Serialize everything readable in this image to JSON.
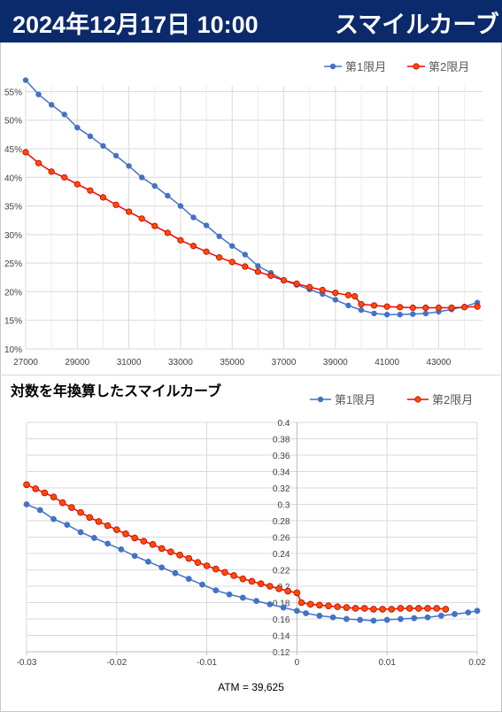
{
  "header": {
    "date": "2024年12月17日 10:00",
    "title": "スマイルカーブ"
  },
  "colors": {
    "header_bg": "#0b2a6b",
    "series1": "#4472c4",
    "series2": "#ff0000",
    "series2_fill": "#ff4b00"
  },
  "chart1_title": "",
  "chart2_title": "対数を年換算したスマイルカーブ",
  "atm_label": "ATM = 39,625",
  "chart_data": [
    {
      "type": "line",
      "legend": "top-right",
      "xlim": [
        27000,
        44700
      ],
      "ylim": [
        10,
        56
      ],
      "x_ticks": [
        "27000",
        "29000",
        "31000",
        "33000",
        "35000",
        "37000",
        "39000",
        "41000",
        "43000"
      ],
      "y_ticks": [
        "10%",
        "15%",
        "20%",
        "25%",
        "30%",
        "35%",
        "40%",
        "45%",
        "50%",
        "55%"
      ],
      "grid": true,
      "series": [
        {
          "name": "第1限月",
          "color": "#4472c4",
          "x": [
            27000,
            27500,
            28000,
            28500,
            29000,
            29500,
            30000,
            30500,
            31000,
            31500,
            32000,
            32500,
            33000,
            33500,
            34000,
            34500,
            35000,
            35500,
            36000,
            36500,
            37000,
            37500,
            38000,
            38500,
            39000,
            39500,
            40000,
            40500,
            41000,
            41500,
            42000,
            42500,
            43000,
            43500,
            44000,
            44500
          ],
          "y": [
            57.0,
            54.5,
            52.7,
            51.0,
            48.7,
            47.2,
            45.5,
            43.8,
            42.0,
            40.0,
            38.5,
            36.8,
            35.0,
            33.0,
            31.6,
            29.7,
            28.0,
            26.5,
            24.5,
            23.3,
            22.0,
            21.2,
            20.4,
            19.6,
            18.6,
            17.6,
            16.8,
            16.2,
            16.0,
            16.0,
            16.1,
            16.2,
            16.5,
            16.9,
            17.4,
            18.1
          ]
        },
        {
          "name": "第2限月",
          "color": "#ff0000",
          "x": [
            27000,
            27500,
            28000,
            28500,
            29000,
            29500,
            30000,
            30500,
            31000,
            31500,
            32000,
            32500,
            33000,
            33500,
            34000,
            34500,
            35000,
            35500,
            36000,
            36500,
            37000,
            37500,
            38000,
            38500,
            39000,
            39500,
            39750,
            40000,
            40500,
            41000,
            41500,
            42000,
            42500,
            43000,
            43500,
            44000,
            44500
          ],
          "y": [
            44.4,
            42.5,
            41.0,
            40.0,
            38.8,
            37.7,
            36.5,
            35.2,
            34.0,
            32.8,
            31.5,
            30.3,
            29.0,
            28.0,
            27.0,
            26.0,
            25.2,
            24.4,
            23.5,
            22.8,
            22.0,
            21.4,
            20.8,
            20.3,
            19.8,
            19.4,
            19.2,
            17.8,
            17.6,
            17.4,
            17.3,
            17.2,
            17.2,
            17.2,
            17.2,
            17.3,
            17.4
          ]
        }
      ]
    },
    {
      "type": "line",
      "title": "対数を年換算したスマイルカーブ",
      "legend": "top-right",
      "xlim": [
        -0.03,
        0.02
      ],
      "ylim": [
        0.12,
        0.4
      ],
      "x_ticks": [
        "-0.03",
        "-0.02",
        "-0.01",
        "0",
        "0.01",
        "0.02"
      ],
      "y_ticks": [
        "0.12",
        "0.14",
        "0.16",
        "0.18",
        "0.2",
        "0.22",
        "0.24",
        "0.26",
        "0.28",
        "0.3",
        "0.32",
        "0.34",
        "0.36",
        "0.38",
        "0.4"
      ],
      "grid": true,
      "series": [
        {
          "name": "第1限月",
          "color": "#4472c4",
          "x": [
            -0.03,
            -0.0285,
            -0.027,
            -0.0255,
            -0.024,
            -0.0225,
            -0.021,
            -0.0195,
            -0.018,
            -0.0165,
            -0.015,
            -0.0135,
            -0.012,
            -0.0105,
            -0.009,
            -0.0075,
            -0.006,
            -0.0045,
            -0.003,
            -0.0015,
            0.0,
            0.001,
            0.0025,
            0.004,
            0.0055,
            0.007,
            0.0085,
            0.01,
            0.0115,
            0.013,
            0.0145,
            0.016,
            0.0175,
            0.019,
            0.02
          ],
          "y": [
            0.3,
            0.293,
            0.282,
            0.275,
            0.266,
            0.259,
            0.252,
            0.245,
            0.237,
            0.23,
            0.223,
            0.216,
            0.209,
            0.202,
            0.195,
            0.19,
            0.186,
            0.182,
            0.178,
            0.174,
            0.17,
            0.167,
            0.164,
            0.162,
            0.16,
            0.159,
            0.158,
            0.159,
            0.16,
            0.161,
            0.162,
            0.164,
            0.166,
            0.168,
            0.17
          ]
        },
        {
          "name": "第2限月",
          "color": "#ff0000",
          "x": [
            -0.03,
            -0.029,
            -0.028,
            -0.027,
            -0.026,
            -0.025,
            -0.024,
            -0.023,
            -0.022,
            -0.021,
            -0.02,
            -0.019,
            -0.018,
            -0.017,
            -0.016,
            -0.015,
            -0.014,
            -0.013,
            -0.012,
            -0.011,
            -0.01,
            -0.009,
            -0.008,
            -0.007,
            -0.006,
            -0.005,
            -0.004,
            -0.003,
            -0.002,
            -0.001,
            0.0,
            0.0005,
            0.0015,
            0.0025,
            0.0035,
            0.0045,
            0.0055,
            0.0065,
            0.0075,
            0.0085,
            0.0095,
            0.0105,
            0.0115,
            0.0125,
            0.0135,
            0.0145,
            0.0155,
            0.0165
          ],
          "y": [
            0.324,
            0.319,
            0.314,
            0.309,
            0.302,
            0.296,
            0.29,
            0.284,
            0.279,
            0.274,
            0.269,
            0.264,
            0.259,
            0.255,
            0.251,
            0.246,
            0.242,
            0.238,
            0.234,
            0.229,
            0.225,
            0.221,
            0.217,
            0.213,
            0.209,
            0.206,
            0.203,
            0.2,
            0.197,
            0.194,
            0.192,
            0.18,
            0.178,
            0.177,
            0.176,
            0.175,
            0.174,
            0.173,
            0.173,
            0.172,
            0.172,
            0.172,
            0.173,
            0.173,
            0.173,
            0.173,
            0.173,
            0.172
          ]
        }
      ]
    }
  ]
}
